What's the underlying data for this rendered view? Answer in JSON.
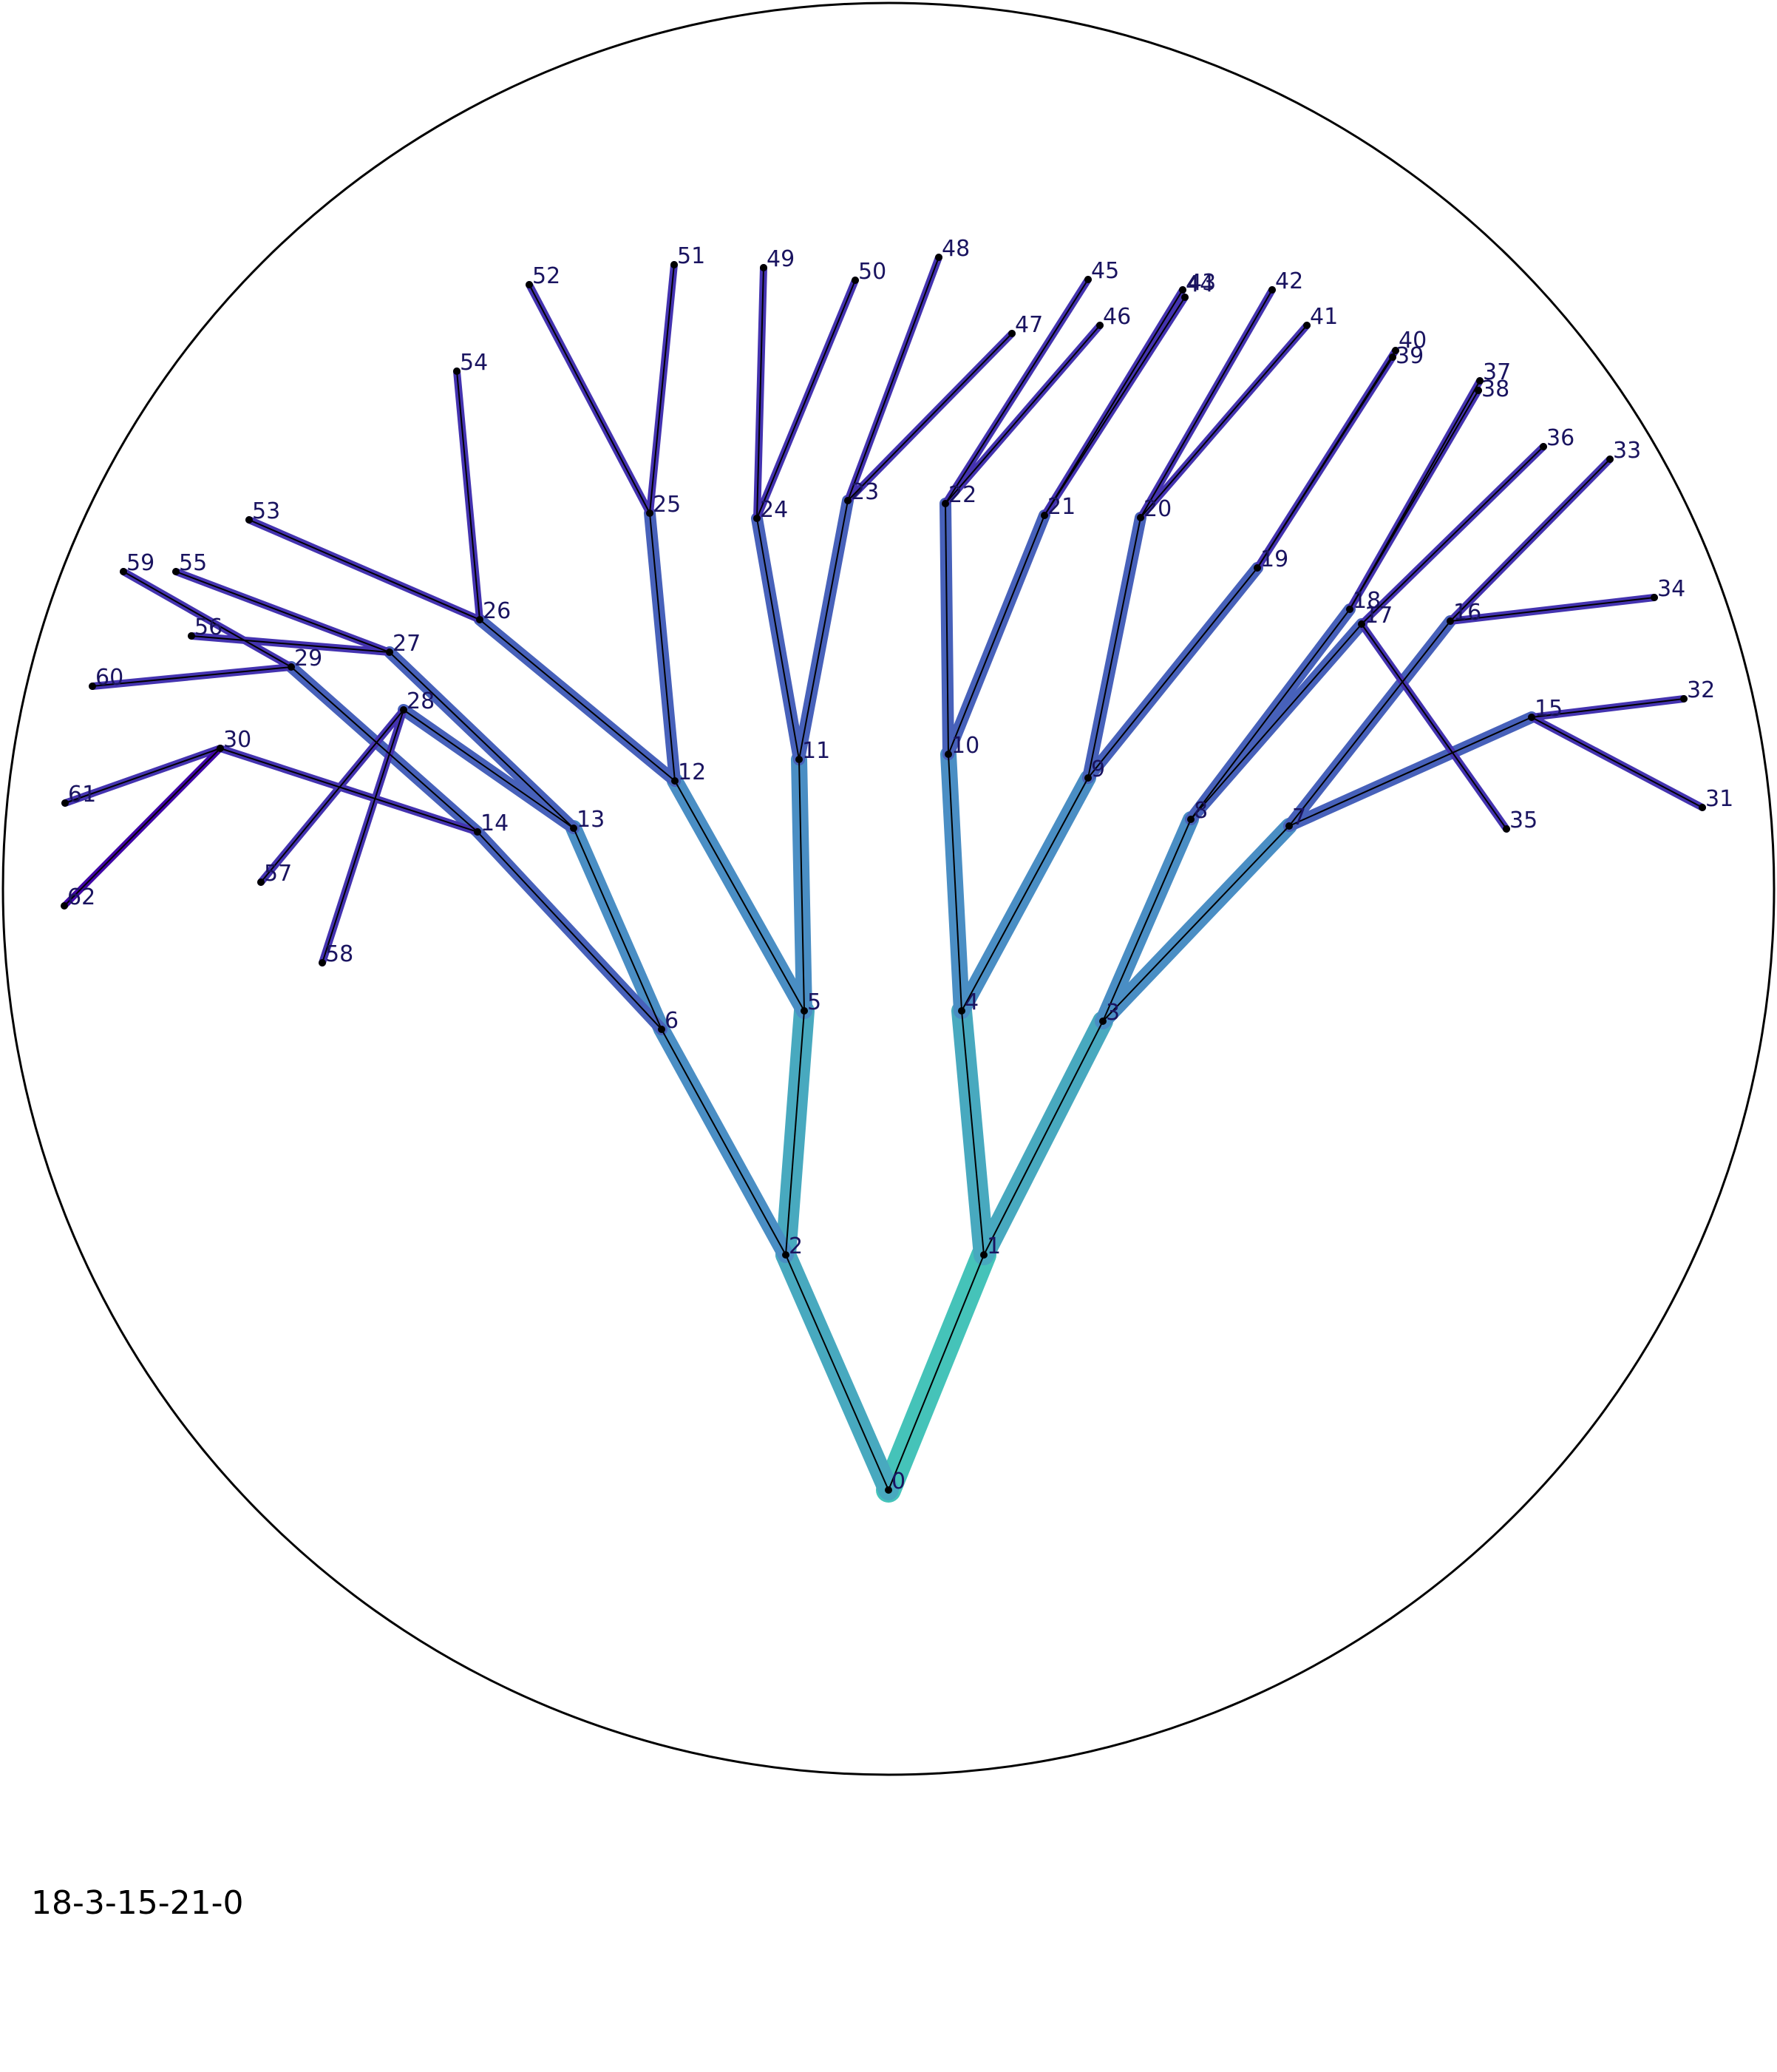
{
  "caption": "18-3-15-21-0",
  "colors": {
    "trunk": "#45c3b9",
    "mid": "#4a8ec4",
    "leaf": "#4433b0",
    "edge_line": "#000000",
    "node_dot": "#000000",
    "label": "#1a1460",
    "circle": "#000000"
  },
  "nodes": [
    {
      "id": "0"
    },
    {
      "id": "1"
    },
    {
      "id": "2"
    },
    {
      "id": "3"
    },
    {
      "id": "4"
    },
    {
      "id": "5"
    },
    {
      "id": "6"
    },
    {
      "id": "7"
    },
    {
      "id": "8"
    },
    {
      "id": "9"
    },
    {
      "id": "10"
    },
    {
      "id": "11"
    },
    {
      "id": "12"
    },
    {
      "id": "13"
    },
    {
      "id": "14"
    },
    {
      "id": "15"
    },
    {
      "id": "16"
    },
    {
      "id": "17"
    },
    {
      "id": "18"
    },
    {
      "id": "19"
    },
    {
      "id": "20"
    },
    {
      "id": "21"
    },
    {
      "id": "22"
    },
    {
      "id": "23"
    },
    {
      "id": "24"
    },
    {
      "id": "25"
    },
    {
      "id": "26"
    },
    {
      "id": "27"
    },
    {
      "id": "28"
    },
    {
      "id": "29"
    },
    {
      "id": "30"
    },
    {
      "id": "31"
    },
    {
      "id": "32"
    },
    {
      "id": "33"
    },
    {
      "id": "34"
    },
    {
      "id": "35"
    },
    {
      "id": "36"
    },
    {
      "id": "37"
    },
    {
      "id": "38"
    },
    {
      "id": "39"
    },
    {
      "id": "40"
    },
    {
      "id": "41"
    },
    {
      "id": "42"
    },
    {
      "id": "43"
    },
    {
      "id": "44"
    },
    {
      "id": "45"
    },
    {
      "id": "46"
    },
    {
      "id": "47"
    },
    {
      "id": "48"
    },
    {
      "id": "49"
    },
    {
      "id": "50"
    },
    {
      "id": "51"
    },
    {
      "id": "52"
    },
    {
      "id": "53"
    },
    {
      "id": "54"
    },
    {
      "id": "55"
    },
    {
      "id": "56"
    },
    {
      "id": "57"
    },
    {
      "id": "58"
    },
    {
      "id": "59"
    },
    {
      "id": "60"
    },
    {
      "id": "61"
    },
    {
      "id": "62"
    }
  ],
  "edges": [
    [
      "0",
      "1"
    ],
    [
      "0",
      "2"
    ],
    [
      "1",
      "3"
    ],
    [
      "1",
      "4"
    ],
    [
      "2",
      "5"
    ],
    [
      "2",
      "6"
    ],
    [
      "3",
      "7"
    ],
    [
      "3",
      "8"
    ],
    [
      "4",
      "9"
    ],
    [
      "4",
      "10"
    ],
    [
      "5",
      "11"
    ],
    [
      "5",
      "12"
    ],
    [
      "6",
      "13"
    ],
    [
      "6",
      "14"
    ],
    [
      "7",
      "15"
    ],
    [
      "7",
      "16"
    ],
    [
      "8",
      "17"
    ],
    [
      "8",
      "18"
    ],
    [
      "9",
      "19"
    ],
    [
      "9",
      "20"
    ],
    [
      "10",
      "21"
    ],
    [
      "10",
      "22"
    ],
    [
      "11",
      "23"
    ],
    [
      "11",
      "24"
    ],
    [
      "12",
      "25"
    ],
    [
      "12",
      "26"
    ],
    [
      "13",
      "27"
    ],
    [
      "13",
      "28"
    ],
    [
      "14",
      "29"
    ],
    [
      "14",
      "30"
    ],
    [
      "15",
      "31"
    ],
    [
      "15",
      "32"
    ],
    [
      "16",
      "33"
    ],
    [
      "16",
      "34"
    ],
    [
      "17",
      "35"
    ],
    [
      "17",
      "36"
    ],
    [
      "18",
      "37"
    ],
    [
      "18",
      "38"
    ],
    [
      "19",
      "39"
    ],
    [
      "19",
      "40"
    ],
    [
      "20",
      "41"
    ],
    [
      "20",
      "42"
    ],
    [
      "21",
      "43"
    ],
    [
      "21",
      "44"
    ],
    [
      "22",
      "45"
    ],
    [
      "22",
      "46"
    ],
    [
      "23",
      "47"
    ],
    [
      "23",
      "48"
    ],
    [
      "24",
      "49"
    ],
    [
      "24",
      "50"
    ],
    [
      "25",
      "51"
    ],
    [
      "25",
      "52"
    ],
    [
      "26",
      "53"
    ],
    [
      "26",
      "54"
    ],
    [
      "27",
      "55"
    ],
    [
      "27",
      "56"
    ],
    [
      "28",
      "57"
    ],
    [
      "28",
      "58"
    ],
    [
      "29",
      "59"
    ],
    [
      "29",
      "60"
    ],
    [
      "30",
      "61"
    ],
    [
      "30",
      "62"
    ]
  ]
}
